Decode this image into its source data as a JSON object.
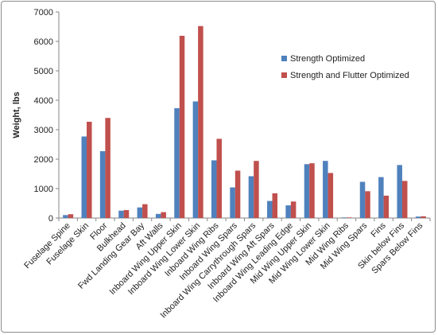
{
  "chart_data": {
    "type": "bar",
    "title": "",
    "xlabel": "",
    "ylabel": "Weight, lbs",
    "ylim": [
      0,
      7000
    ],
    "yticks": [
      0,
      1000,
      2000,
      3000,
      4000,
      5000,
      6000,
      7000
    ],
    "grid": false,
    "legend_position": "right",
    "categories": [
      "Fuselage Spine",
      "Fuselage Skin",
      "Floor",
      "Bulkhead",
      "Fwd Landing Gear Bay",
      "Aft Walls",
      "Inboard Wing Upper Skin",
      "Inboard Wing Lower Skin",
      "Inboard Wing Ribs",
      "Inboard Wing Spars",
      "Inboard Wing Carrythrough Spars",
      "Inboard Wing Aft Spars",
      "Inboard Wing Leading Edge",
      "Mid Wing Upper Skin",
      "Mid Wing Lower Skin",
      "Mid Wing Ribs",
      "Mid Wing Spars",
      "Fins",
      "Skin below Fins",
      "Spars Below Fins"
    ],
    "series": [
      {
        "name": "Strength Optimized",
        "color": "#4f81bd",
        "values": [
          100,
          2770,
          2270,
          250,
          360,
          140,
          3730,
          3960,
          1960,
          1040,
          1420,
          580,
          430,
          1830,
          1940,
          20,
          1230,
          1390,
          1800,
          50
        ]
      },
      {
        "name": "Strength and Flutter Optimized",
        "color": "#c0504d",
        "values": [
          130,
          3270,
          3400,
          270,
          470,
          200,
          6190,
          6520,
          2690,
          1610,
          1940,
          840,
          560,
          1860,
          1530,
          20,
          910,
          760,
          1260,
          60
        ]
      }
    ]
  }
}
